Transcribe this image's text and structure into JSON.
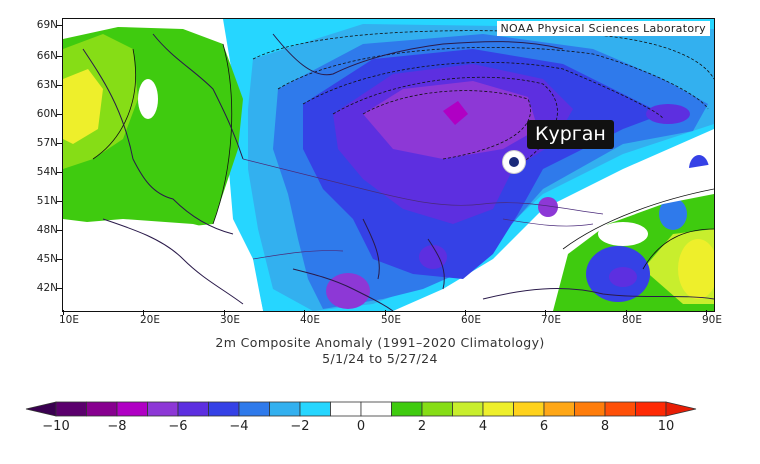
{
  "map": {
    "credit": "NOAA Physical Sciences Laboratory",
    "lat_labels": [
      "69N",
      "66N",
      "63N",
      "60N",
      "57N",
      "54N",
      "51N",
      "48N",
      "45N",
      "42N"
    ],
    "lon_labels": [
      "10E",
      "20E",
      "30E",
      "40E",
      "50E",
      "60E",
      "70E",
      "80E",
      "90E"
    ],
    "caption_line1": "2m   Composite Anomaly (1991–2020 Climatology)",
    "caption_line2": "5/1/24  to 5/27/24",
    "city_label": "Курган"
  },
  "colorbar": {
    "ticks": [
      "−10",
      "−8",
      "−6",
      "−4",
      "−2",
      "0",
      "2",
      "4",
      "6",
      "8",
      "10"
    ],
    "colors": [
      "#5b006d",
      "#87008f",
      "#b000c4",
      "#8d38d6",
      "#5d2fe0",
      "#3541e6",
      "#2f7aeb",
      "#33b0ef",
      "#26d6ff",
      "#ffffff",
      "#ffffff",
      "#3fcb0f",
      "#86dd16",
      "#c8ee2d",
      "#eeef2b",
      "#ffd21c",
      "#ffa717",
      "#ff7d0b",
      "#ff5008",
      "#ff2a05"
    ],
    "left_arrow_color": "#3a0050",
    "right_arrow_color": "#e81d05"
  },
  "anomaly_palette": {
    "deep_purple": "#b000c4",
    "violet": "#8d38d6",
    "blue_violet": "#5d2fe0",
    "blue": "#3541e6",
    "mid_blue": "#2f7aeb",
    "light_blue": "#33b0ef",
    "cyan": "#26d6ff",
    "green": "#3fcb0f",
    "lime": "#86dd16",
    "yellow": "#eeef2b",
    "orange": "#ffd21c"
  }
}
